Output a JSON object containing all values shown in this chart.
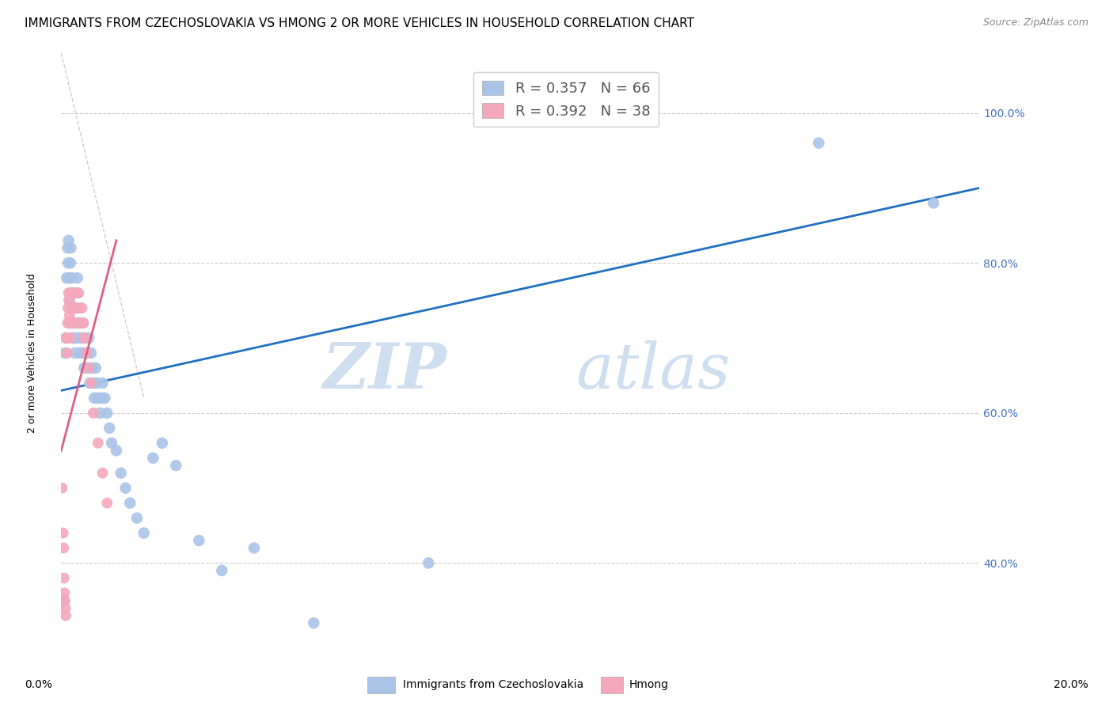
{
  "title": "IMMIGRANTS FROM CZECHOSLOVAKIA VS HMONG 2 OR MORE VEHICLES IN HOUSEHOLD CORRELATION CHART",
  "source": "Source: ZipAtlas.com",
  "ylabel": "2 or more Vehicles in Household",
  "blue_R": 0.357,
  "blue_N": 66,
  "pink_R": 0.392,
  "pink_N": 38,
  "blue_scatter_x": [
    0.05,
    0.08,
    0.1,
    0.12,
    0.14,
    0.15,
    0.16,
    0.17,
    0.18,
    0.19,
    0.2,
    0.21,
    0.22,
    0.23,
    0.24,
    0.25,
    0.26,
    0.27,
    0.28,
    0.3,
    0.32,
    0.33,
    0.35,
    0.36,
    0.38,
    0.4,
    0.42,
    0.44,
    0.46,
    0.48,
    0.5,
    0.52,
    0.55,
    0.58,
    0.6,
    0.62,
    0.65,
    0.68,
    0.7,
    0.72,
    0.75,
    0.78,
    0.8,
    0.85,
    0.88,
    0.9,
    0.95,
    1.0,
    1.05,
    1.1,
    1.2,
    1.3,
    1.4,
    1.5,
    1.65,
    1.8,
    2.0,
    2.2,
    2.5,
    3.0,
    3.5,
    4.2,
    5.5,
    8.0,
    16.5,
    19.0
  ],
  "blue_scatter_y": [
    35.0,
    68.0,
    70.0,
    78.0,
    82.0,
    80.0,
    83.0,
    78.0,
    75.0,
    72.0,
    80.0,
    82.0,
    76.0,
    78.0,
    74.0,
    70.0,
    76.0,
    72.0,
    70.0,
    68.0,
    76.0,
    74.0,
    78.0,
    72.0,
    70.0,
    68.0,
    72.0,
    70.0,
    68.0,
    72.0,
    66.0,
    70.0,
    68.0,
    66.0,
    70.0,
    64.0,
    68.0,
    66.0,
    64.0,
    62.0,
    66.0,
    64.0,
    62.0,
    60.0,
    62.0,
    64.0,
    62.0,
    60.0,
    58.0,
    56.0,
    55.0,
    52.0,
    50.0,
    48.0,
    46.0,
    44.0,
    54.0,
    56.0,
    53.0,
    43.0,
    39.0,
    42.0,
    32.0,
    40.0,
    96.0,
    88.0
  ],
  "pink_scatter_x": [
    0.02,
    0.04,
    0.05,
    0.06,
    0.07,
    0.08,
    0.09,
    0.1,
    0.11,
    0.12,
    0.13,
    0.14,
    0.15,
    0.16,
    0.17,
    0.18,
    0.19,
    0.2,
    0.22,
    0.24,
    0.26,
    0.28,
    0.3,
    0.32,
    0.35,
    0.38,
    0.4,
    0.42,
    0.45,
    0.48,
    0.5,
    0.55,
    0.6,
    0.65,
    0.7,
    0.8,
    0.9,
    1.0
  ],
  "pink_scatter_y": [
    50.0,
    44.0,
    42.0,
    38.0,
    36.0,
    35.0,
    34.0,
    33.0,
    70.0,
    70.0,
    68.0,
    72.0,
    74.0,
    76.0,
    75.0,
    73.0,
    72.0,
    70.0,
    76.0,
    74.0,
    72.0,
    74.0,
    76.0,
    74.0,
    72.0,
    76.0,
    74.0,
    72.0,
    74.0,
    72.0,
    70.0,
    68.0,
    66.0,
    64.0,
    60.0,
    56.0,
    52.0,
    48.0
  ],
  "blue_color": "#aac4e8",
  "pink_color": "#f4a8bc",
  "blue_line_color": "#2070c0",
  "pink_line_color": "#e06080",
  "ref_line_color": "#ccccdd",
  "watermark_zip": "ZIP",
  "watermark_atlas": "atlas",
  "watermark_color": "#d0dff0",
  "xmin": 0.0,
  "xmax": 20.0,
  "ymin": 28.0,
  "ymax": 108.0,
  "yticks_right": [
    40.0,
    60.0,
    80.0,
    100.0
  ],
  "ytick_labels_right": [
    "40.0%",
    "60.0%",
    "80.0%",
    "100.0%"
  ],
  "title_fontsize": 11,
  "source_fontsize": 9,
  "axis_label_fontsize": 9,
  "tick_fontsize": 10,
  "legend_fontsize": 13
}
